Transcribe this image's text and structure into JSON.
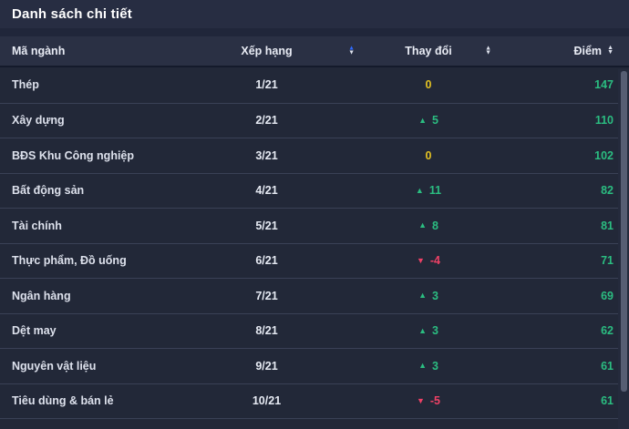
{
  "title": "Danh sách chi tiết",
  "table": {
    "columns": [
      {
        "label": "Mã ngành",
        "sortable": false,
        "sort_state": "none"
      },
      {
        "label": "Xếp hạng",
        "sortable": true,
        "sort_state": "asc"
      },
      {
        "label": "Thay đổi",
        "sortable": true,
        "sort_state": "none"
      },
      {
        "label": "Điểm",
        "sortable": true,
        "sort_state": "none"
      }
    ],
    "rows": [
      {
        "sector": "Thép",
        "rank": "1/21",
        "change": 0,
        "score": 147
      },
      {
        "sector": "Xây dựng",
        "rank": "2/21",
        "change": 5,
        "score": 110
      },
      {
        "sector": "BĐS Khu Công nghiệp",
        "rank": "3/21",
        "change": 0,
        "score": 102
      },
      {
        "sector": "Bất động sản",
        "rank": "4/21",
        "change": 11,
        "score": 82
      },
      {
        "sector": "Tài chính",
        "rank": "5/21",
        "change": 8,
        "score": 81
      },
      {
        "sector": "Thực phẩm, Đồ uống",
        "rank": "6/21",
        "change": -4,
        "score": 71
      },
      {
        "sector": "Ngân hàng",
        "rank": "7/21",
        "change": 3,
        "score": 69
      },
      {
        "sector": "Dệt may",
        "rank": "8/21",
        "change": 3,
        "score": 62
      },
      {
        "sector": "Nguyên vật liệu",
        "rank": "9/21",
        "change": 3,
        "score": 61
      },
      {
        "sector": "Tiêu dùng & bán lẻ",
        "rank": "10/21",
        "change": -5,
        "score": 61
      }
    ]
  },
  "icons": {
    "sort_up": "▲",
    "sort_down": "▼",
    "triangle_up": "▲",
    "triangle_down": "▼"
  },
  "colors": {
    "positive_green": "#2bbd81",
    "negative_red": "#ef4166",
    "zero_yellow": "#e3c122",
    "sort_active_blue": "#2f6bff",
    "panel_bg": "#20263a",
    "header_bg": "#2a3044",
    "row_bg": "#222838"
  }
}
